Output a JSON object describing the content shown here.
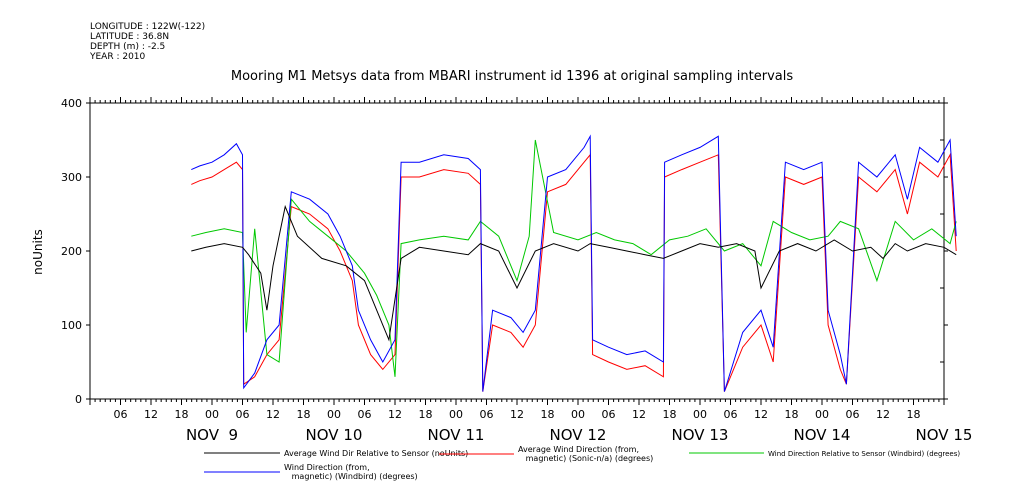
{
  "header": {
    "longitude": "LONGITUDE : 122W(-122)",
    "latitude": "LATITUDE : 36.8N",
    "depth": "DEPTH (m) : -2.5",
    "year": "YEAR : 2010"
  },
  "chart_data": {
    "type": "line",
    "title": "Mooring M1 Metsys data from MBARI instrument id 1396 at original sampling intervals",
    "ylabel": "noUnits",
    "ylim": [
      0,
      400
    ],
    "yticks": [
      0,
      100,
      200,
      300,
      400
    ],
    "xlim": [
      0,
      7
    ],
    "x_unit": "days from NOV 8 00:00",
    "hour_ticks": [
      "00",
      "06",
      "12",
      "18"
    ],
    "days": [
      "NOV  9",
      "NOV 10",
      "NOV 11",
      "NOV 12",
      "NOV 13",
      "NOV 14",
      "NOV 15"
    ],
    "series": [
      {
        "name": "Average Wind Dir Relative to Sensor (noUnits)",
        "color": "#000000",
        "values": [
          [
            0.83,
            200
          ],
          [
            0.95,
            205
          ],
          [
            1.1,
            210
          ],
          [
            1.25,
            205
          ],
          [
            1.3,
            195
          ],
          [
            1.4,
            170
          ],
          [
            1.45,
            120
          ],
          [
            1.5,
            180
          ],
          [
            1.6,
            260
          ],
          [
            1.7,
            220
          ],
          [
            1.9,
            190
          ],
          [
            2.1,
            180
          ],
          [
            2.25,
            160
          ],
          [
            2.35,
            120
          ],
          [
            2.45,
            80
          ],
          [
            2.55,
            190
          ],
          [
            2.7,
            205
          ],
          [
            2.9,
            200
          ],
          [
            3.1,
            195
          ],
          [
            3.2,
            210
          ],
          [
            3.35,
            200
          ],
          [
            3.5,
            150
          ],
          [
            3.65,
            200
          ],
          [
            3.8,
            210
          ],
          [
            4.0,
            200
          ],
          [
            4.1,
            210
          ],
          [
            4.25,
            205
          ],
          [
            4.4,
            200
          ],
          [
            4.55,
            195
          ],
          [
            4.7,
            190
          ],
          [
            4.85,
            200
          ],
          [
            5.0,
            210
          ],
          [
            5.15,
            205
          ],
          [
            5.3,
            210
          ],
          [
            5.45,
            200
          ],
          [
            5.5,
            150
          ],
          [
            5.65,
            200
          ],
          [
            5.8,
            210
          ],
          [
            5.95,
            200
          ],
          [
            6.1,
            215
          ],
          [
            6.25,
            200
          ],
          [
            6.4,
            205
          ],
          [
            6.5,
            190
          ],
          [
            6.6,
            210
          ],
          [
            6.7,
            200
          ],
          [
            6.85,
            210
          ],
          [
            7.0,
            205
          ],
          [
            7.1,
            195
          ]
        ]
      },
      {
        "name": "Average Wind Direction (from, magnetic) (Sonic-n/a) (degrees)",
        "color": "#ff0000",
        "values": [
          [
            0.83,
            290
          ],
          [
            0.9,
            295
          ],
          [
            1.0,
            300
          ],
          [
            1.1,
            310
          ],
          [
            1.2,
            320
          ],
          [
            1.25,
            310
          ],
          [
            1.26,
            20
          ],
          [
            1.35,
            30
          ],
          [
            1.45,
            60
          ],
          [
            1.55,
            80
          ],
          [
            1.65,
            260
          ],
          [
            1.8,
            250
          ],
          [
            1.95,
            230
          ],
          [
            2.05,
            200
          ],
          [
            2.15,
            160
          ],
          [
            2.2,
            100
          ],
          [
            2.3,
            60
          ],
          [
            2.4,
            40
          ],
          [
            2.5,
            60
          ],
          [
            2.55,
            300
          ],
          [
            2.7,
            300
          ],
          [
            2.9,
            310
          ],
          [
            3.1,
            305
          ],
          [
            3.2,
            290
          ],
          [
            3.22,
            10
          ],
          [
            3.3,
            100
          ],
          [
            3.45,
            90
          ],
          [
            3.55,
            70
          ],
          [
            3.65,
            100
          ],
          [
            3.75,
            280
          ],
          [
            3.9,
            290
          ],
          [
            4.05,
            320
          ],
          [
            4.1,
            330
          ],
          [
            4.12,
            60
          ],
          [
            4.25,
            50
          ],
          [
            4.4,
            40
          ],
          [
            4.55,
            45
          ],
          [
            4.7,
            30
          ],
          [
            4.71,
            300
          ],
          [
            4.85,
            310
          ],
          [
            5.0,
            320
          ],
          [
            5.15,
            330
          ],
          [
            5.2,
            10
          ],
          [
            5.35,
            70
          ],
          [
            5.5,
            100
          ],
          [
            5.6,
            50
          ],
          [
            5.7,
            300
          ],
          [
            5.85,
            290
          ],
          [
            6.0,
            300
          ],
          [
            6.05,
            100
          ],
          [
            6.15,
            40
          ],
          [
            6.2,
            20
          ],
          [
            6.3,
            300
          ],
          [
            6.45,
            280
          ],
          [
            6.6,
            310
          ],
          [
            6.7,
            250
          ],
          [
            6.8,
            320
          ],
          [
            6.95,
            300
          ],
          [
            7.05,
            330
          ],
          [
            7.1,
            200
          ]
        ]
      },
      {
        "name": "Wind Direction Relative to Sensor (Windbird) (degrees)",
        "color": "#00c800",
        "values": [
          [
            0.83,
            220
          ],
          [
            0.95,
            225
          ],
          [
            1.1,
            230
          ],
          [
            1.25,
            225
          ],
          [
            1.28,
            90
          ],
          [
            1.35,
            230
          ],
          [
            1.45,
            60
          ],
          [
            1.55,
            50
          ],
          [
            1.65,
            270
          ],
          [
            1.8,
            240
          ],
          [
            1.95,
            220
          ],
          [
            2.1,
            200
          ],
          [
            2.25,
            170
          ],
          [
            2.35,
            140
          ],
          [
            2.45,
            100
          ],
          [
            2.5,
            30
          ],
          [
            2.55,
            210
          ],
          [
            2.7,
            215
          ],
          [
            2.9,
            220
          ],
          [
            3.1,
            215
          ],
          [
            3.2,
            240
          ],
          [
            3.35,
            220
          ],
          [
            3.5,
            160
          ],
          [
            3.6,
            220
          ],
          [
            3.65,
            350
          ],
          [
            3.8,
            225
          ],
          [
            4.0,
            215
          ],
          [
            4.15,
            225
          ],
          [
            4.3,
            215
          ],
          [
            4.45,
            210
          ],
          [
            4.6,
            195
          ],
          [
            4.75,
            215
          ],
          [
            4.9,
            220
          ],
          [
            5.05,
            230
          ],
          [
            5.2,
            200
          ],
          [
            5.35,
            210
          ],
          [
            5.5,
            180
          ],
          [
            5.6,
            240
          ],
          [
            5.75,
            225
          ],
          [
            5.9,
            215
          ],
          [
            6.05,
            220
          ],
          [
            6.15,
            240
          ],
          [
            6.3,
            230
          ],
          [
            6.45,
            160
          ],
          [
            6.6,
            240
          ],
          [
            6.75,
            215
          ],
          [
            6.9,
            230
          ],
          [
            7.05,
            210
          ],
          [
            7.1,
            240
          ]
        ]
      },
      {
        "name": "Wind Direction (from, magnetic) (Windbird) (degrees)",
        "color": "#0000ff",
        "values": [
          [
            0.83,
            310
          ],
          [
            0.9,
            315
          ],
          [
            1.0,
            320
          ],
          [
            1.1,
            330
          ],
          [
            1.2,
            345
          ],
          [
            1.25,
            330
          ],
          [
            1.26,
            15
          ],
          [
            1.35,
            35
          ],
          [
            1.45,
            80
          ],
          [
            1.55,
            100
          ],
          [
            1.65,
            280
          ],
          [
            1.8,
            270
          ],
          [
            1.95,
            250
          ],
          [
            2.05,
            220
          ],
          [
            2.15,
            180
          ],
          [
            2.2,
            120
          ],
          [
            2.3,
            80
          ],
          [
            2.4,
            50
          ],
          [
            2.5,
            80
          ],
          [
            2.55,
            320
          ],
          [
            2.7,
            320
          ],
          [
            2.9,
            330
          ],
          [
            3.1,
            325
          ],
          [
            3.2,
            310
          ],
          [
            3.22,
            10
          ],
          [
            3.3,
            120
          ],
          [
            3.45,
            110
          ],
          [
            3.55,
            90
          ],
          [
            3.65,
            120
          ],
          [
            3.75,
            300
          ],
          [
            3.9,
            310
          ],
          [
            4.05,
            340
          ],
          [
            4.1,
            355
          ],
          [
            4.12,
            80
          ],
          [
            4.25,
            70
          ],
          [
            4.4,
            60
          ],
          [
            4.55,
            65
          ],
          [
            4.7,
            50
          ],
          [
            4.71,
            320
          ],
          [
            4.85,
            330
          ],
          [
            5.0,
            340
          ],
          [
            5.15,
            355
          ],
          [
            5.2,
            10
          ],
          [
            5.35,
            90
          ],
          [
            5.5,
            120
          ],
          [
            5.6,
            70
          ],
          [
            5.7,
            320
          ],
          [
            5.85,
            310
          ],
          [
            6.0,
            320
          ],
          [
            6.05,
            120
          ],
          [
            6.15,
            60
          ],
          [
            6.2,
            20
          ],
          [
            6.3,
            320
          ],
          [
            6.45,
            300
          ],
          [
            6.6,
            330
          ],
          [
            6.7,
            270
          ],
          [
            6.8,
            340
          ],
          [
            6.95,
            320
          ],
          [
            7.05,
            350
          ],
          [
            7.1,
            220
          ]
        ]
      }
    ]
  }
}
